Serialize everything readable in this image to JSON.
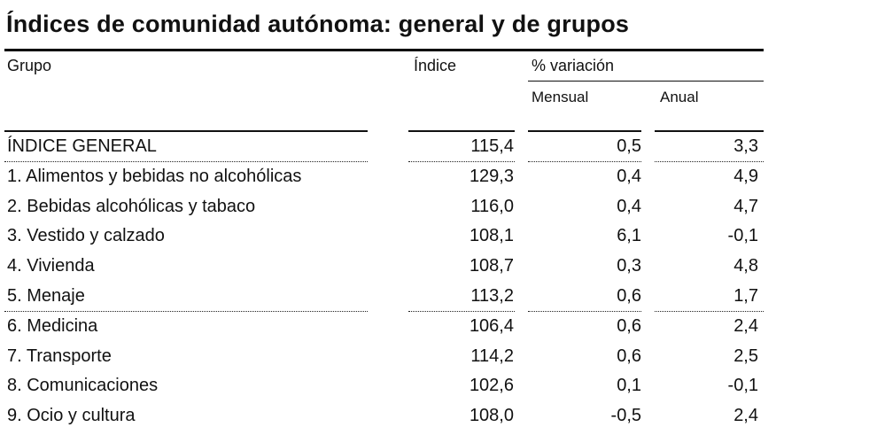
{
  "title": "Índices de comunidad autónoma: general y de grupos",
  "headers": {
    "group": "Grupo",
    "index": "Índice",
    "variation": "% variación",
    "monthly": "Mensual",
    "annual": "Anual"
  },
  "rows": [
    {
      "group": "ÍNDICE GENERAL",
      "index": "115,4",
      "monthly": "0,5",
      "annual": "3,3"
    },
    {
      "group": "1. Alimentos y bebidas no alcohólicas",
      "index": "129,3",
      "monthly": "0,4",
      "annual": "4,9"
    },
    {
      "group": "2. Bebidas alcohólicas y tabaco",
      "index": "116,0",
      "monthly": "0,4",
      "annual": "4,7"
    },
    {
      "group": "3. Vestido y calzado",
      "index": "108,1",
      "monthly": "6,1",
      "annual": "-0,1"
    },
    {
      "group": "4. Vivienda",
      "index": "108,7",
      "monthly": "0,3",
      "annual": "4,8"
    },
    {
      "group": "5. Menaje",
      "index": "113,2",
      "monthly": "0,6",
      "annual": "1,7"
    },
    {
      "group": "6. Medicina",
      "index": "106,4",
      "monthly": "0,6",
      "annual": "2,4"
    },
    {
      "group": "7. Transporte",
      "index": "114,2",
      "monthly": "0,6",
      "annual": "2,5"
    },
    {
      "group": "8. Comunicaciones",
      "index": "102,6",
      "monthly": "0,1",
      "annual": "-0,1"
    },
    {
      "group": "9. Ocio y cultura",
      "index": "108,0",
      "monthly": "-0,5",
      "annual": "2,4"
    }
  ]
}
